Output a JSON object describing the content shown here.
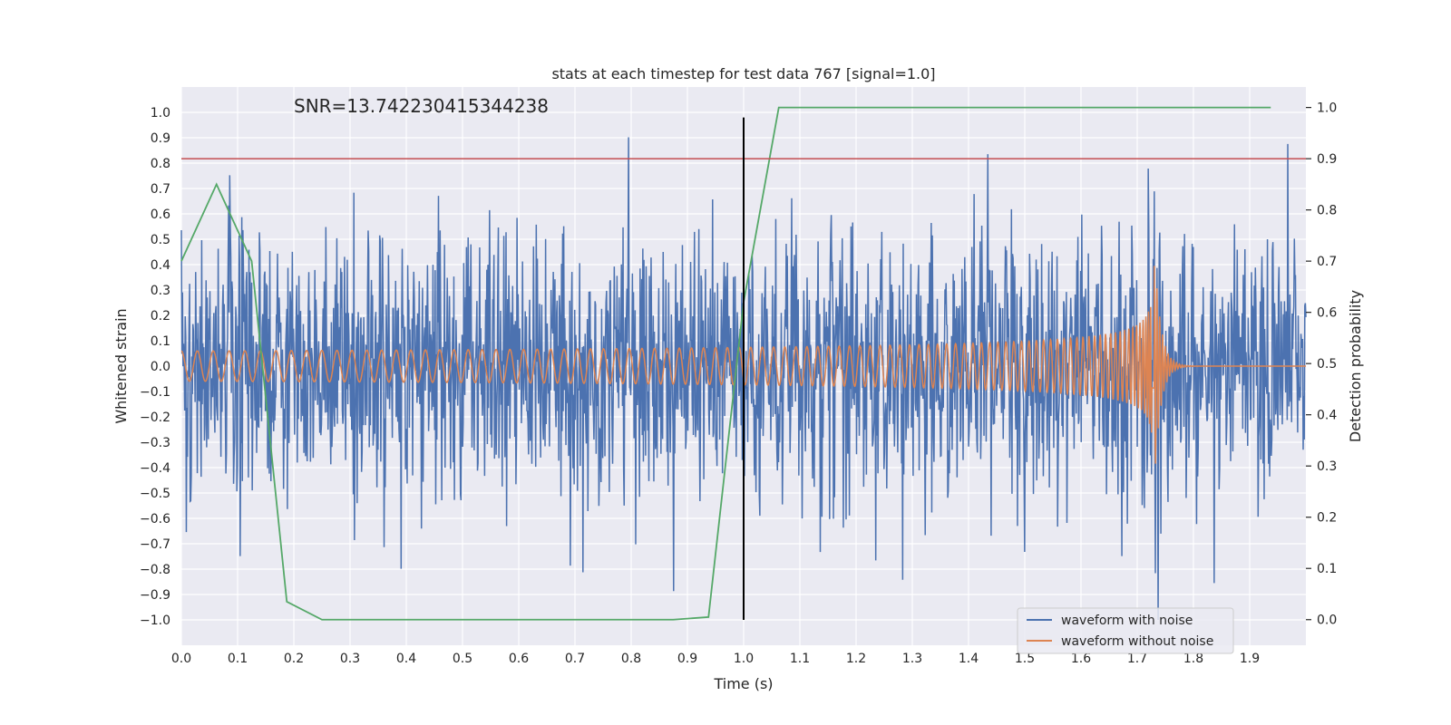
{
  "chart_data": {
    "type": "line",
    "title": "stats at each timestep for test data 767 [signal=1.0]",
    "xlabel": "Time (s)",
    "ylabel_left": "Whitened strain",
    "ylabel_right": "Detection probability",
    "annotation": "SNR=13.742230415344238",
    "xlim": [
      0.0,
      2.0
    ],
    "ylim_left": [
      -1.1,
      1.1
    ],
    "ylim_right": [
      -0.05,
      1.04
    ],
    "x_ticks": [
      0.0,
      0.1,
      0.2,
      0.3,
      0.4,
      0.5,
      0.6,
      0.7,
      0.8,
      0.9,
      1.0,
      1.1,
      1.2,
      1.3,
      1.4,
      1.5,
      1.6,
      1.7,
      1.8,
      1.9
    ],
    "x_tick_labels": [
      "0.0",
      "0.1",
      "0.2",
      "0.3",
      "0.4",
      "0.5",
      "0.6",
      "0.7",
      "0.8",
      "0.9",
      "1.0",
      "1.1",
      "1.2",
      "1.3",
      "1.4",
      "1.5",
      "1.6",
      "1.7",
      "1.8",
      "1.9"
    ],
    "y_left_ticks": [
      1.0,
      0.9,
      0.8,
      0.7,
      0.6,
      0.5,
      0.4,
      0.3,
      0.2,
      0.1,
      0.0,
      -0.1,
      -0.2,
      -0.3,
      -0.4,
      -0.5,
      -0.6,
      -0.7,
      -0.8,
      -0.9,
      -1.0
    ],
    "y_left_tick_labels": [
      "1.0",
      "0.9",
      "0.8",
      "0.7",
      "0.6",
      "0.5",
      "0.4",
      "0.3",
      "0.2",
      "0.1",
      "0.0",
      "−0.1",
      "−0.2",
      "−0.3",
      "−0.4",
      "−0.5",
      "−0.6",
      "−0.7",
      "−0.8",
      "−0.9",
      "−1.0"
    ],
    "y_right_ticks": [
      1.0,
      0.9,
      0.8,
      0.7,
      0.6,
      0.5,
      0.4,
      0.3,
      0.2,
      0.1,
      0.0
    ],
    "y_right_tick_labels": [
      "1.0",
      "0.9",
      "0.8",
      "0.7",
      "0.6",
      "0.5",
      "0.4",
      "0.3",
      "0.2",
      "0.1",
      "0.0"
    ],
    "grid": true,
    "legend_position": "lower-right",
    "series": [
      {
        "name": "waveform with noise",
        "color": "#4c72b0",
        "axis": "left",
        "kind": "noisy-waveform",
        "x_range": [
          0.0,
          2.0
        ],
        "approx_amplitude": 0.35,
        "peak_range": [
          -1.0,
          0.97
        ]
      },
      {
        "name": "waveform without noise",
        "color": "#dd8452",
        "axis": "left",
        "kind": "chirp",
        "x_range": [
          0.0,
          2.0
        ],
        "merger_time": 1.73,
        "start_amplitude": 0.07,
        "peak_amplitude": 0.48,
        "start_frequency_hz": 35,
        "end_frequency_hz": 200
      },
      {
        "name": "detection probability",
        "color": "#55a868",
        "axis": "right",
        "x": [
          0.0,
          0.0625,
          0.125,
          0.1875,
          0.25,
          0.875,
          0.9375,
          1.0,
          1.0625,
          1.9375
        ],
        "y": [
          0.7,
          0.85,
          0.7,
          0.035,
          0.0,
          0.0,
          0.005,
          0.62,
          1.0,
          1.0
        ]
      }
    ],
    "threshold_line": {
      "axis": "right",
      "y": 0.9,
      "color": "#c44e52"
    },
    "vertical_line": {
      "x": 1.0,
      "y_range_left": [
        -1.0,
        0.98
      ],
      "color": "#000000"
    }
  }
}
